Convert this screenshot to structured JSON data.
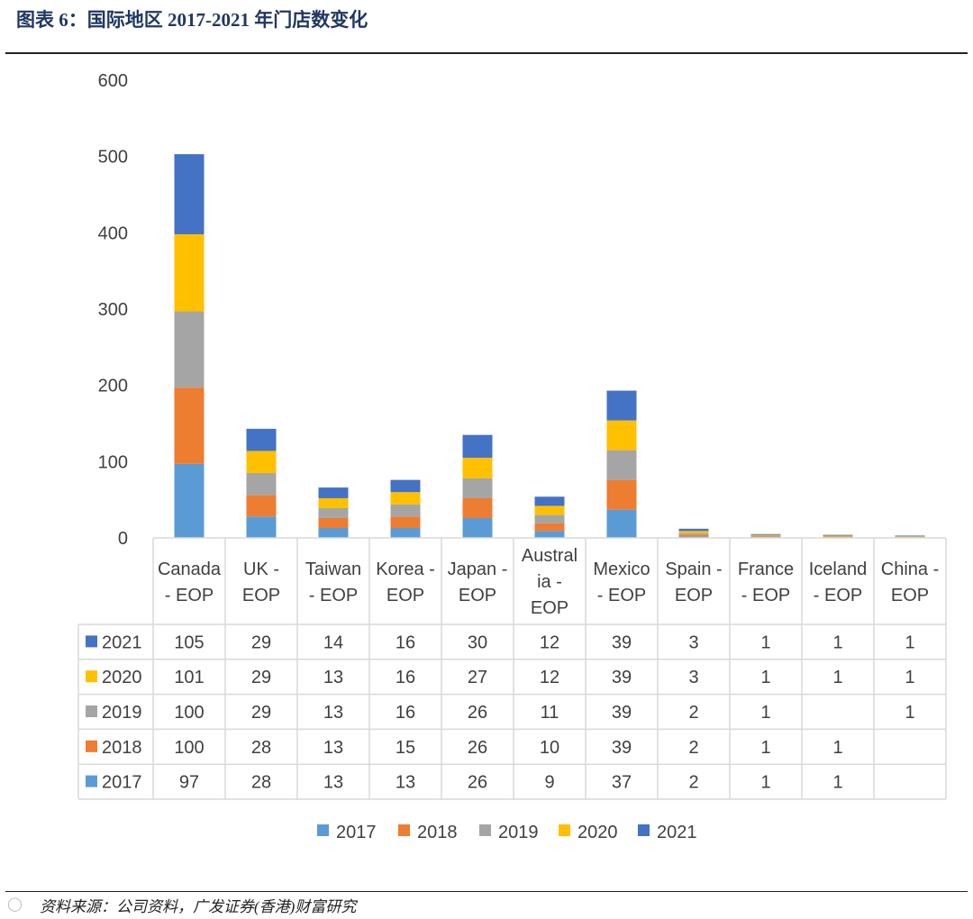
{
  "figure": {
    "title": "图表 6：国际地区 2017-2021 年门店数变化",
    "source": "资料来源：公司资料，广发证券(香港)财富研究",
    "watermark_icon": "weibo-icon"
  },
  "chart_data": {
    "type": "bar",
    "stacked": true,
    "title": "",
    "xlabel": "",
    "ylabel": "",
    "ylim": [
      0,
      600
    ],
    "yticks": [
      "0",
      "100",
      "200",
      "300",
      "400",
      "500",
      "600"
    ],
    "categories": [
      [
        "Canada",
        "- EOP"
      ],
      [
        "UK -",
        "EOP"
      ],
      [
        "Taiwan",
        "- EOP"
      ],
      [
        "Korea -",
        "EOP"
      ],
      [
        "Japan -",
        "EOP"
      ],
      [
        "Austral",
        "ia -",
        "EOP"
      ],
      [
        "Mexico",
        "- EOP"
      ],
      [
        "Spain -",
        "EOP"
      ],
      [
        "France",
        "- EOP"
      ],
      [
        "Iceland",
        "- EOP"
      ],
      [
        "China -",
        "EOP"
      ]
    ],
    "series": [
      {
        "name": "2017",
        "color": "#5b9bd5",
        "values": [
          97,
          28,
          13,
          13,
          26,
          9,
          37,
          2,
          1,
          1,
          null
        ]
      },
      {
        "name": "2018",
        "color": "#ed7d31",
        "values": [
          100,
          28,
          13,
          15,
          26,
          10,
          39,
          2,
          1,
          1,
          null
        ]
      },
      {
        "name": "2019",
        "color": "#a5a5a5",
        "values": [
          100,
          29,
          13,
          16,
          26,
          11,
          39,
          2,
          1,
          null,
          1
        ]
      },
      {
        "name": "2020",
        "color": "#ffc000",
        "values": [
          101,
          29,
          13,
          16,
          27,
          12,
          39,
          3,
          1,
          1,
          1
        ]
      },
      {
        "name": "2021",
        "color": "#4472c4",
        "values": [
          105,
          29,
          14,
          16,
          30,
          12,
          39,
          3,
          1,
          1,
          1
        ]
      }
    ],
    "data_table": true,
    "legend_position": "bottom",
    "grid": false
  }
}
